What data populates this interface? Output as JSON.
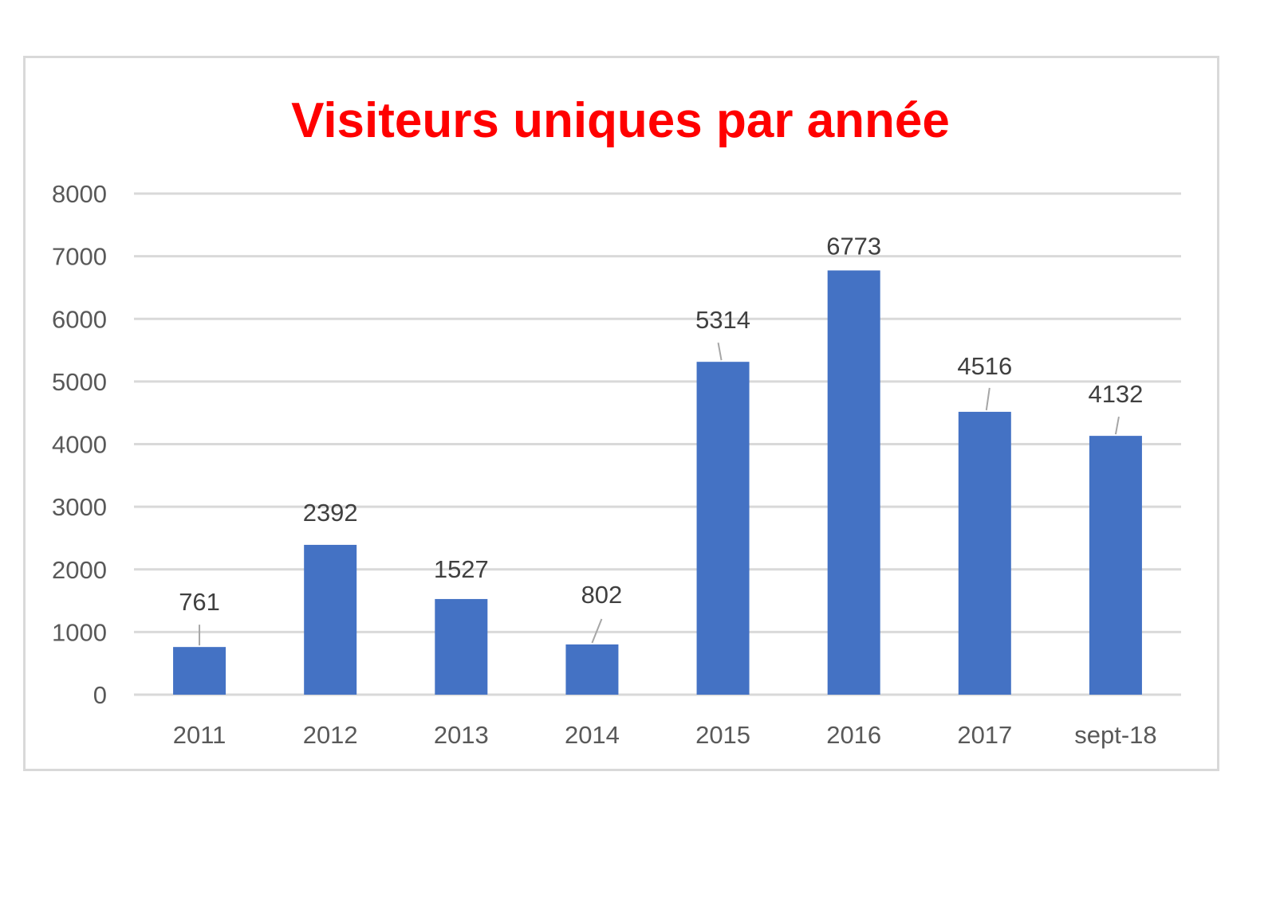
{
  "chart_data": {
    "type": "bar",
    "title": "Visiteurs uniques par année",
    "xlabel": "",
    "ylabel": "",
    "categories": [
      "2011",
      "2012",
      "2013",
      "2014",
      "2015",
      "2016",
      "2017",
      "sept-18"
    ],
    "values": [
      761,
      2392,
      1527,
      802,
      5314,
      6773,
      4516,
      4132
    ],
    "ylim": [
      0,
      8000
    ],
    "yticks": [
      "0",
      "1000",
      "2000",
      "3000",
      "4000",
      "5000",
      "6000",
      "7000",
      "8000"
    ],
    "grid": true,
    "legend": "none",
    "bar_color": "#4472C4",
    "title_color": "#FF0000"
  }
}
